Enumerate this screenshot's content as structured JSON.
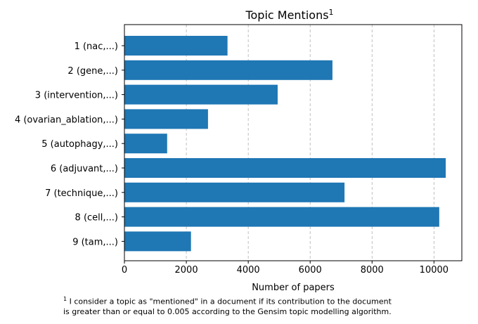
{
  "chart_data": {
    "type": "bar",
    "orientation": "horizontal",
    "title": "Topic Mentions",
    "title_superscript": "1",
    "xlabel": "Number of papers",
    "ylabel": "",
    "categories": [
      "1 (nac,...)",
      "2 (gene,...)",
      "3 (intervention,...)",
      "4 (ovarian_ablation,...)",
      "5 (autophagy,...)",
      "6 (adjuvant,...)",
      "7 (technique,...)",
      "8 (cell,...)",
      "9 (tam,...)"
    ],
    "values": [
      3330,
      6720,
      4950,
      2700,
      1380,
      10380,
      7110,
      10170,
      2150
    ],
    "xlim": [
      0,
      10900
    ],
    "xticks": [
      "0",
      "2000",
      "4000",
      "6000",
      "8000",
      "10000"
    ],
    "xtick_values": [
      0,
      2000,
      4000,
      6000,
      8000,
      10000
    ],
    "grid": "vertical dashed",
    "bar_color": "#1f77b4"
  },
  "footnote": {
    "marker": "1",
    "line1": " I consider a topic as \"mentioned\" in a document if its contribution to the document",
    "line2": "is greater than or equal to 0.005 according to the Gensim topic modelling algorithm."
  }
}
